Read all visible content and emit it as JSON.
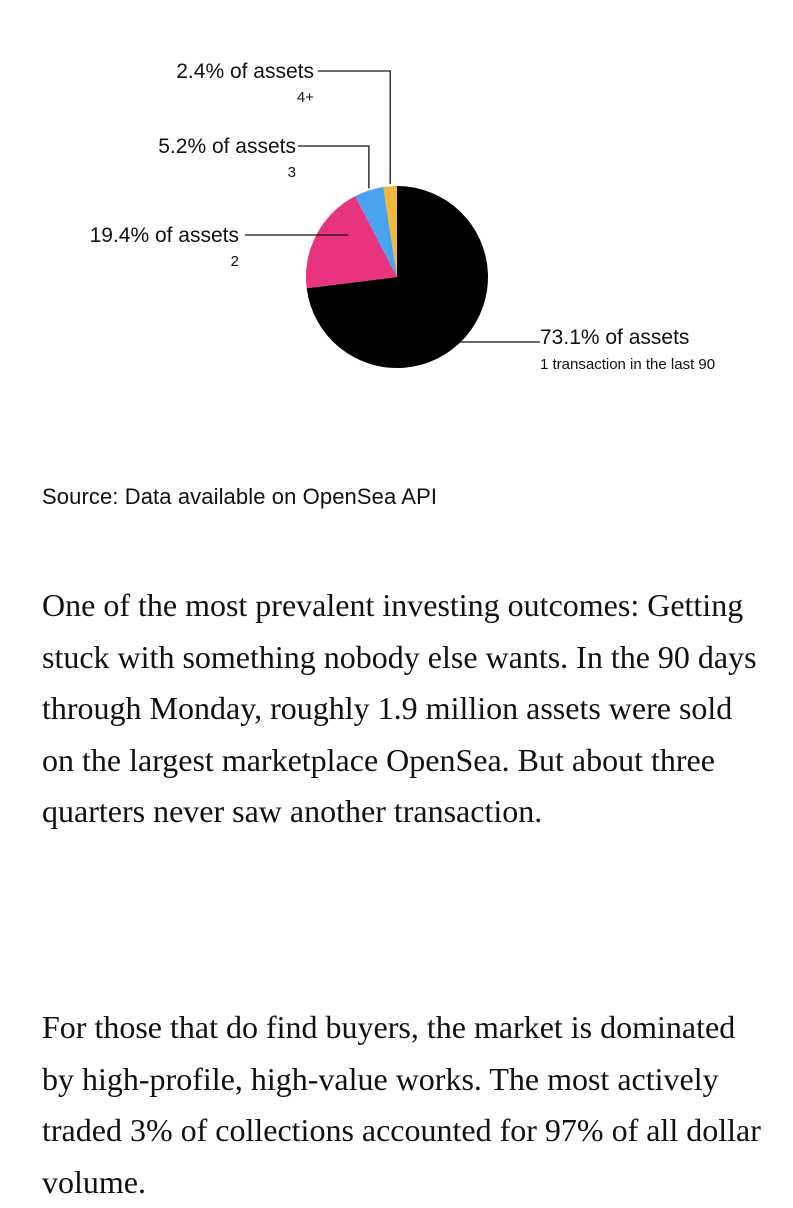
{
  "chart_data": {
    "type": "pie",
    "title": "",
    "start_angle_deg": 0,
    "direction": "clockwise",
    "slices": [
      {
        "value": 73.1,
        "label": "73.1% of assets",
        "sublabel": "1 transaction in the last 90",
        "color": "#000000"
      },
      {
        "value": 19.4,
        "label": "19.4% of assets",
        "sublabel": "2",
        "color": "#e8347f"
      },
      {
        "value": 5.2,
        "label": "5.2% of assets",
        "sublabel": "3",
        "color": "#4aa3f0"
      },
      {
        "value": 2.4,
        "label": "2.4% of assets",
        "sublabel": "4+",
        "color": "#efba3c"
      }
    ],
    "source": "Source: Data available on OpenSea API"
  },
  "article": {
    "paragraphs": [
      "One of the most prevalent investing outcomes: Getting stuck with something nobody else wants. In the 90 days through Monday, roughly 1.9 million assets were sold on the largest marketplace OpenSea. But about three quarters never saw another transaction.",
      "For those that do find buyers, the market is dominated by high-profile, high-value works. The most actively traded 3% of collections accounted for 97% of all dollar volume."
    ]
  }
}
